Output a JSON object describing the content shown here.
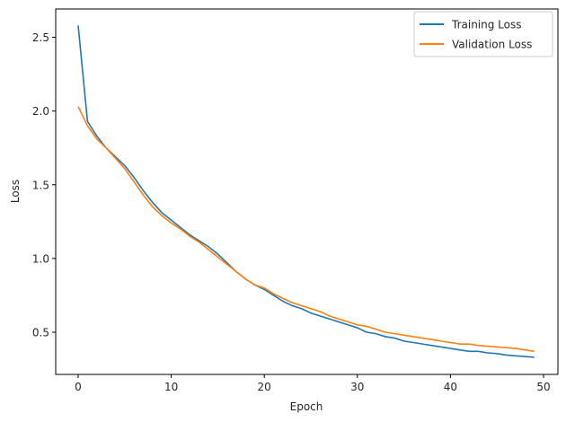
{
  "chart_data": {
    "type": "line",
    "title": "",
    "xlabel": "Epoch",
    "ylabel": "Loss",
    "xlim": [
      -2.45,
      51.45
    ],
    "ylim": [
      0.215,
      2.69
    ],
    "xticks": [
      0,
      10,
      20,
      30,
      40,
      50
    ],
    "xtick_labels": [
      "0",
      "10",
      "20",
      "30",
      "40",
      "50"
    ],
    "yticks": [
      0.5,
      1.0,
      1.5,
      2.0,
      2.5
    ],
    "ytick_labels": [
      "0.5",
      "1.0",
      "1.5",
      "2.0",
      "2.5"
    ],
    "grid": false,
    "legend_position": "upper right",
    "x": [
      0,
      1,
      2,
      3,
      4,
      5,
      6,
      7,
      8,
      9,
      10,
      11,
      12,
      13,
      14,
      15,
      16,
      17,
      18,
      19,
      20,
      21,
      22,
      23,
      24,
      25,
      26,
      27,
      28,
      29,
      30,
      31,
      32,
      33,
      34,
      35,
      36,
      37,
      38,
      39,
      40,
      41,
      42,
      43,
      44,
      45,
      46,
      47,
      48,
      49
    ],
    "series": [
      {
        "name": "Training Loss",
        "color": "#1f77b4",
        "values": [
          2.58,
          1.93,
          1.83,
          1.75,
          1.69,
          1.63,
          1.55,
          1.46,
          1.38,
          1.31,
          1.26,
          1.21,
          1.16,
          1.12,
          1.08,
          1.03,
          0.97,
          0.91,
          0.86,
          0.82,
          0.79,
          0.75,
          0.71,
          0.68,
          0.66,
          0.63,
          0.61,
          0.59,
          0.57,
          0.55,
          0.53,
          0.5,
          0.49,
          0.47,
          0.46,
          0.44,
          0.43,
          0.42,
          0.41,
          0.4,
          0.39,
          0.38,
          0.37,
          0.37,
          0.36,
          0.355,
          0.345,
          0.34,
          0.335,
          0.33
        ]
      },
      {
        "name": "Validation Loss",
        "color": "#ff7f0e",
        "values": [
          2.03,
          1.9,
          1.81,
          1.75,
          1.68,
          1.61,
          1.52,
          1.43,
          1.35,
          1.29,
          1.24,
          1.2,
          1.15,
          1.11,
          1.06,
          1.01,
          0.96,
          0.91,
          0.86,
          0.82,
          0.8,
          0.76,
          0.73,
          0.7,
          0.68,
          0.66,
          0.64,
          0.61,
          0.59,
          0.57,
          0.55,
          0.54,
          0.52,
          0.5,
          0.49,
          0.48,
          0.47,
          0.46,
          0.45,
          0.44,
          0.43,
          0.42,
          0.42,
          0.41,
          0.405,
          0.4,
          0.395,
          0.39,
          0.38,
          0.37
        ]
      }
    ]
  },
  "colors": {
    "axis": "#000000",
    "text": "#262626",
    "legend_border": "#cccccc",
    "background": "#ffffff"
  }
}
